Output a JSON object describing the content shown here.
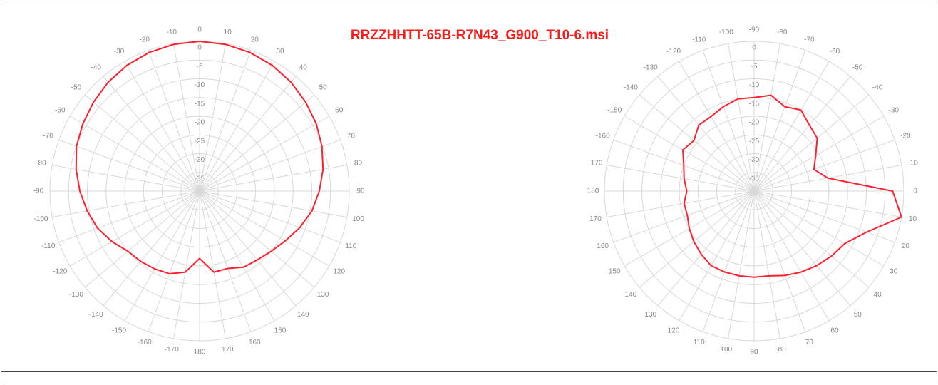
{
  "title": "RRZZHHTT-65B-R7N43_G900_T10-6.msi",
  "chart_data": [
    {
      "type": "polar",
      "theta_zero": "top",
      "direction": "clockwise",
      "color": "#ff2030",
      "theta": [
        0,
        10,
        20,
        30,
        40,
        50,
        60,
        70,
        80,
        90,
        100,
        110,
        120,
        130,
        140,
        150,
        160,
        170,
        180,
        -170,
        -160,
        -150,
        -140,
        -130,
        -120,
        -110,
        -100,
        -90,
        -80,
        -70,
        -60,
        -50,
        -40,
        -30,
        -20,
        -10
      ],
      "values": [
        0,
        -0.2,
        -0.6,
        -1.2,
        -2,
        -3,
        -4,
        -5.2,
        -6.5,
        -8,
        -9.5,
        -11.5,
        -13.5,
        -15,
        -16,
        -16.5,
        -18,
        -18,
        -22,
        -18,
        -16.5,
        -16,
        -15.5,
        -15,
        -13,
        -11,
        -9.5,
        -8,
        -6.5,
        -5,
        -4,
        -3,
        -2,
        -1.2,
        -0.6,
        -0.2
      ],
      "rlim": [
        -40,
        0
      ],
      "rticks": [
        0,
        -5,
        -10,
        -15,
        -20,
        -25,
        -30,
        -35
      ],
      "thetaticks": [
        0,
        10,
        20,
        30,
        40,
        50,
        60,
        70,
        80,
        90,
        100,
        110,
        120,
        130,
        140,
        150,
        160,
        170,
        180,
        -170,
        -160,
        -150,
        -140,
        -130,
        -120,
        -110,
        -100,
        -90,
        -80,
        -70,
        -60,
        -50,
        -40,
        -30,
        -20,
        -10
      ]
    },
    {
      "type": "polar",
      "theta_zero": "right",
      "direction": "clockwise",
      "color": "#ff2030",
      "theta": [
        0,
        10,
        20,
        30,
        40,
        50,
        60,
        70,
        80,
        90,
        100,
        110,
        120,
        130,
        140,
        150,
        160,
        170,
        180,
        -170,
        -160,
        -150,
        -140,
        -130,
        -120,
        -110,
        -100,
        -90,
        -80,
        -70,
        -60,
        -50,
        -40,
        -30,
        -20,
        -10
      ],
      "values": [
        -3,
        0,
        -8,
        -12,
        -13,
        -14,
        -15,
        -16,
        -17,
        -17,
        -17,
        -17,
        -17,
        -18,
        -19,
        -20,
        -21,
        -21,
        -22,
        -21,
        -20,
        -18,
        -19,
        -17,
        -17,
        -16,
        -15,
        -15,
        -14,
        -16,
        -15,
        -17,
        -18,
        -21,
        -23,
        -20
      ],
      "rlim": [
        -40,
        0
      ],
      "rticks": [
        0,
        -5,
        -10,
        -15,
        -20,
        -25,
        -30,
        -35
      ],
      "thetaticks": [
        0,
        10,
        20,
        30,
        40,
        50,
        60,
        70,
        80,
        90,
        100,
        110,
        120,
        130,
        140,
        150,
        160,
        170,
        180,
        -170,
        -160,
        -150,
        -140,
        -130,
        -120,
        -110,
        -100,
        -90,
        -80,
        -70,
        -60,
        -50,
        -40,
        -30,
        -20,
        -10
      ]
    }
  ]
}
